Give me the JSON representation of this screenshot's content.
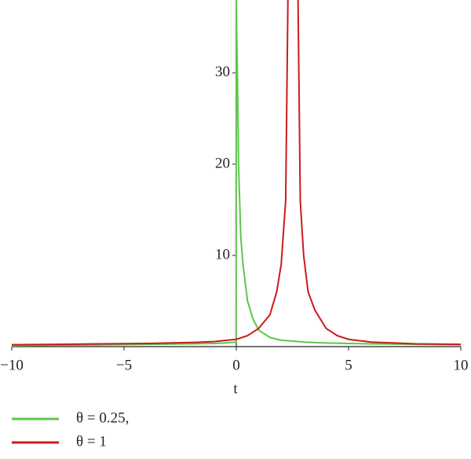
{
  "chart_data": {
    "type": "line",
    "xlabel": "t",
    "xlim": [
      -10,
      10
    ],
    "ylim": [
      0,
      38
    ],
    "xticks": [
      {
        "value": -10,
        "label": "−10"
      },
      {
        "value": -5,
        "label": "−5"
      },
      0,
      5,
      10
    ],
    "yticks": [
      10,
      20,
      30
    ],
    "series": [
      {
        "name": "θ = 0.25,",
        "color": "#5cc84a",
        "x": [
          -10,
          -8,
          -6,
          -4,
          -2,
          -1,
          -0.5,
          -0.01,
          0,
          0.02,
          0.05,
          0.1,
          0.2,
          0.3,
          0.5,
          0.75,
          1,
          1.5,
          2,
          3,
          4,
          5,
          6,
          8,
          10
        ],
        "values": [
          0.1,
          0.15,
          0.2,
          0.25,
          0.3,
          0.35,
          0.4,
          0.5,
          38,
          34,
          30,
          20,
          12,
          9,
          5,
          3,
          1.8,
          1,
          0.7,
          0.5,
          0.4,
          0.35,
          0.3,
          0.25,
          0.2
        ]
      },
      {
        "name": "θ = 1",
        "color": "#cc1a1a",
        "x": [
          -10,
          -8,
          -6,
          -4,
          -2,
          -1,
          0,
          0.5,
          1,
          1.5,
          1.8,
          2,
          2.2,
          2.3,
          2.5,
          2.75,
          2.85,
          3,
          3.2,
          3.5,
          4,
          4.5,
          5,
          6,
          8,
          10
        ],
        "values": [
          0.2,
          0.25,
          0.3,
          0.35,
          0.45,
          0.55,
          0.8,
          1.2,
          2,
          3.5,
          6,
          9,
          16,
          38,
          null,
          38,
          16,
          10,
          6,
          4,
          2,
          1.2,
          0.8,
          0.5,
          0.3,
          0.25
        ]
      }
    ]
  }
}
